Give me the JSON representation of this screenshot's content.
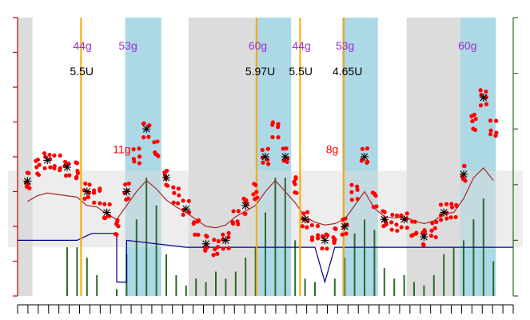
{
  "chart_data": {
    "type": "line",
    "xlim": [
      0,
      1
    ],
    "ylim_left": [
      0,
      400
    ],
    "ylim_right": [
      0,
      400
    ],
    "colors": {
      "points": "#ff0000",
      "markers": "#000000",
      "bars": "#2d6a2d",
      "basal_line": "#00008b",
      "trend_line": "#a52a2a",
      "gray_band": "#dcdcdc",
      "blue_band": "#add8e6",
      "insulin_line": "#ffa500",
      "carb_label": "#9932cc",
      "hypo_carb_label": "#ff0000",
      "left_axis": "#cc0000",
      "right_axis": "#2d6a2d"
    },
    "target_range": [
      70,
      180
    ],
    "shaded_periods": [
      {
        "type": "gray",
        "x0": 0.0,
        "x1": 0.03
      },
      {
        "type": "blue",
        "x0": 0.217,
        "x1": 0.29
      },
      {
        "type": "gray",
        "x0": 0.345,
        "x1": 0.455
      },
      {
        "type": "blue",
        "x0": 0.48,
        "x1": 0.552
      },
      {
        "type": "gray",
        "x0": 0.455,
        "x1": 0.48
      },
      {
        "type": "blue",
        "x0": 0.655,
        "x1": 0.727
      },
      {
        "type": "gray",
        "x0": 0.785,
        "x1": 0.893
      },
      {
        "type": "blue",
        "x0": 0.893,
        "x1": 0.965
      }
    ],
    "insulin_events": [
      {
        "x": 0.128,
        "dose": "5.5U",
        "carbs": "44g"
      },
      {
        "x": 0.482,
        "dose": "5.97U",
        "carbs": "60g"
      },
      {
        "x": 0.57,
        "dose": "5.5U",
        "carbs": "44g"
      },
      {
        "x": 0.658,
        "dose": "4.65U",
        "carbs": "53g"
      }
    ],
    "meal_labels": [
      {
        "x": 0.22,
        "text": "53g"
      },
      {
        "x": 0.905,
        "text": "60g"
      }
    ],
    "hypo_treatments": [
      {
        "x": 0.205,
        "glucose": 205,
        "text": "11g"
      },
      {
        "x": 0.635,
        "glucose": 205,
        "text": "8g"
      }
    ],
    "glucose_points": [
      [
        0.02,
        165
      ],
      [
        0.04,
        185
      ],
      [
        0.06,
        195
      ],
      [
        0.08,
        190
      ],
      [
        0.1,
        185
      ],
      [
        0.12,
        180
      ],
      [
        0.14,
        150
      ],
      [
        0.16,
        145
      ],
      [
        0.18,
        120
      ],
      [
        0.2,
        100
      ],
      [
        0.22,
        150
      ],
      [
        0.24,
        200
      ],
      [
        0.26,
        240
      ],
      [
        0.28,
        210
      ],
      [
        0.3,
        170
      ],
      [
        0.32,
        145
      ],
      [
        0.34,
        125
      ],
      [
        0.36,
        100
      ],
      [
        0.38,
        75
      ],
      [
        0.4,
        70
      ],
      [
        0.42,
        80
      ],
      [
        0.44,
        110
      ],
      [
        0.46,
        130
      ],
      [
        0.48,
        150
      ],
      [
        0.5,
        200
      ],
      [
        0.52,
        240
      ],
      [
        0.54,
        200
      ],
      [
        0.56,
        160
      ],
      [
        0.58,
        110
      ],
      [
        0.6,
        90
      ],
      [
        0.62,
        80
      ],
      [
        0.64,
        85
      ],
      [
        0.66,
        100
      ],
      [
        0.68,
        150
      ],
      [
        0.7,
        200
      ],
      [
        0.72,
        140
      ],
      [
        0.74,
        110
      ],
      [
        0.76,
        105
      ],
      [
        0.78,
        110
      ],
      [
        0.8,
        95
      ],
      [
        0.82,
        85
      ],
      [
        0.84,
        95
      ],
      [
        0.86,
        120
      ],
      [
        0.88,
        125
      ],
      [
        0.9,
        175
      ],
      [
        0.92,
        250
      ],
      [
        0.94,
        285
      ],
      [
        0.96,
        240
      ]
    ],
    "bars": [
      [
        0.1,
        70
      ],
      [
        0.12,
        70
      ],
      [
        0.14,
        55
      ],
      [
        0.16,
        30
      ],
      [
        0.2,
        10
      ],
      [
        0.22,
        60
      ],
      [
        0.24,
        110
      ],
      [
        0.26,
        170
      ],
      [
        0.28,
        130
      ],
      [
        0.3,
        60
      ],
      [
        0.32,
        30
      ],
      [
        0.34,
        15
      ],
      [
        0.36,
        25
      ],
      [
        0.38,
        20
      ],
      [
        0.4,
        35
      ],
      [
        0.42,
        25
      ],
      [
        0.44,
        35
      ],
      [
        0.46,
        55
      ],
      [
        0.48,
        70
      ],
      [
        0.5,
        120
      ],
      [
        0.52,
        170
      ],
      [
        0.54,
        170
      ],
      [
        0.56,
        80
      ],
      [
        0.58,
        25
      ],
      [
        0.6,
        20
      ],
      [
        0.64,
        25
      ],
      [
        0.66,
        55
      ],
      [
        0.68,
        90
      ],
      [
        0.7,
        110
      ],
      [
        0.72,
        95
      ],
      [
        0.74,
        40
      ],
      [
        0.76,
        25
      ],
      [
        0.78,
        30
      ],
      [
        0.8,
        20
      ],
      [
        0.82,
        15
      ],
      [
        0.84,
        30
      ],
      [
        0.86,
        60
      ],
      [
        0.88,
        70
      ],
      [
        0.9,
        80
      ],
      [
        0.92,
        110
      ],
      [
        0.94,
        140
      ],
      [
        0.96,
        50
      ]
    ]
  }
}
